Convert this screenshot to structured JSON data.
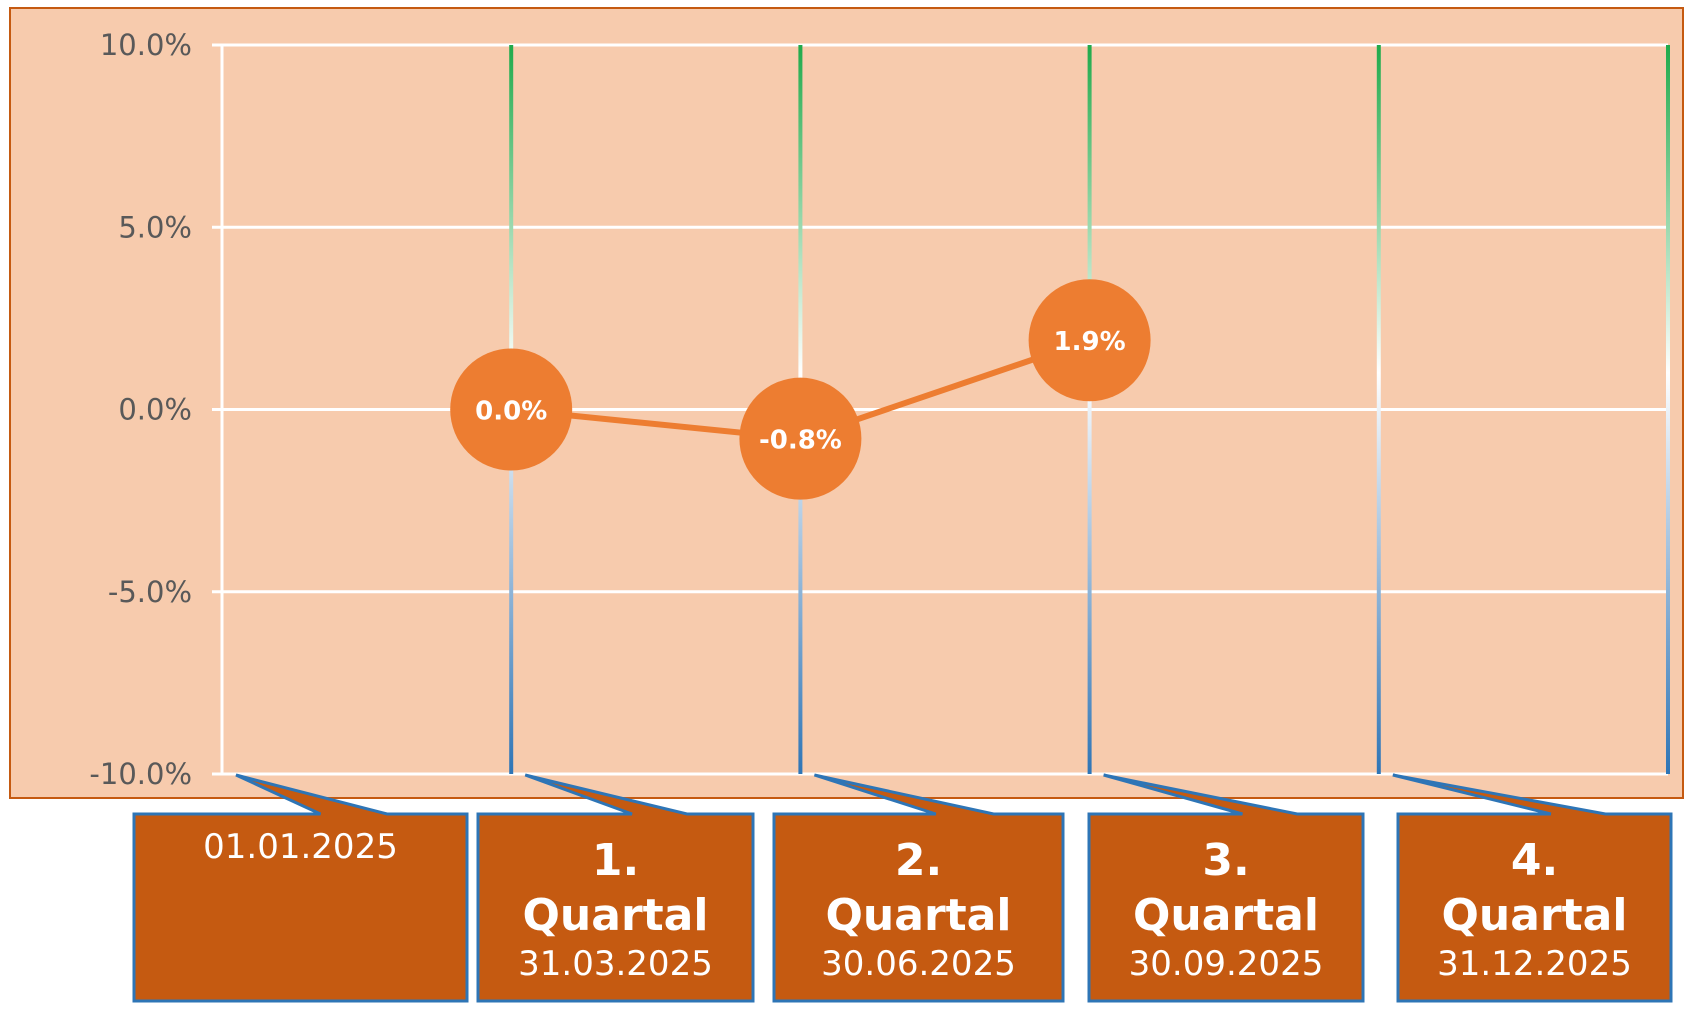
{
  "chart_data": {
    "type": "line",
    "y_tick_labels": [
      "10.0%",
      "5.0%",
      "0.0%",
      "-5.0%",
      "-10.0%"
    ],
    "ylim": [
      -10,
      10
    ],
    "grid": true,
    "x": [
      "31.03.2025",
      "30.06.2025",
      "30.09.2025"
    ],
    "values": [
      0.0,
      -0.8,
      1.9
    ],
    "data_labels": [
      "0.0%",
      "-0.8%",
      "1.9%"
    ],
    "annotations": [
      {
        "line1": "",
        "line2": "",
        "date": "01.01.2025"
      },
      {
        "line1": "1.",
        "line2": "Quartal",
        "date": "31.03.2025"
      },
      {
        "line1": "2.",
        "line2": "Quartal",
        "date": "30.06.2025"
      },
      {
        "line1": "3.",
        "line2": "Quartal",
        "date": "30.09.2025"
      },
      {
        "line1": "4.",
        "line2": "Quartal",
        "date": "31.12.2025"
      }
    ]
  },
  "colors": {
    "plot_background": "#F7CBAD",
    "plot_border": "#C55A11",
    "grid": "#FFFFFF",
    "series": "#ED7D31",
    "callout_fill": "#C55A11",
    "callout_border": "#2E75B6",
    "quarter_line_top": "#1FAA4B",
    "quarter_line_bottom": "#2E75B6"
  }
}
